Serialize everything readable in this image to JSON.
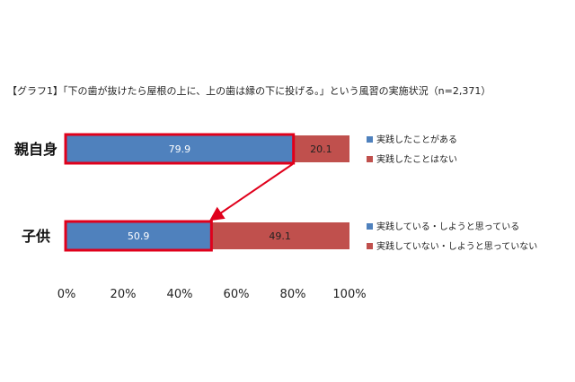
{
  "chart_data": {
    "type": "bar",
    "orientation": "horizontal",
    "stacked": true,
    "title": "【グラフ1】「下の歯が抜けたら屋根の上に、上の歯は縁の下に投げる。」という風習の実施状況（n=2,371）",
    "categories": [
      "親自身",
      "子供"
    ],
    "series": [
      {
        "values": [
          79.9,
          50.9
        ],
        "color": "#4f81bd"
      },
      {
        "values": [
          20.1,
          49.1
        ],
        "color": "#c0504d"
      }
    ],
    "legends": [
      {
        "items": [
          "実践したことがある",
          "実践したことはない"
        ]
      },
      {
        "items": [
          "実践している・しようと思っている",
          "実践していない・しようと思っていない"
        ]
      }
    ],
    "xlim": [
      0,
      100
    ],
    "x_ticks": [
      "0%",
      "20%",
      "40%",
      "60%",
      "80%",
      "100%"
    ],
    "x_tick_values": [
      0,
      20,
      40,
      60,
      80,
      100
    ],
    "grid": false,
    "highlight_color": "#e0001b",
    "highlight_series": 0
  }
}
